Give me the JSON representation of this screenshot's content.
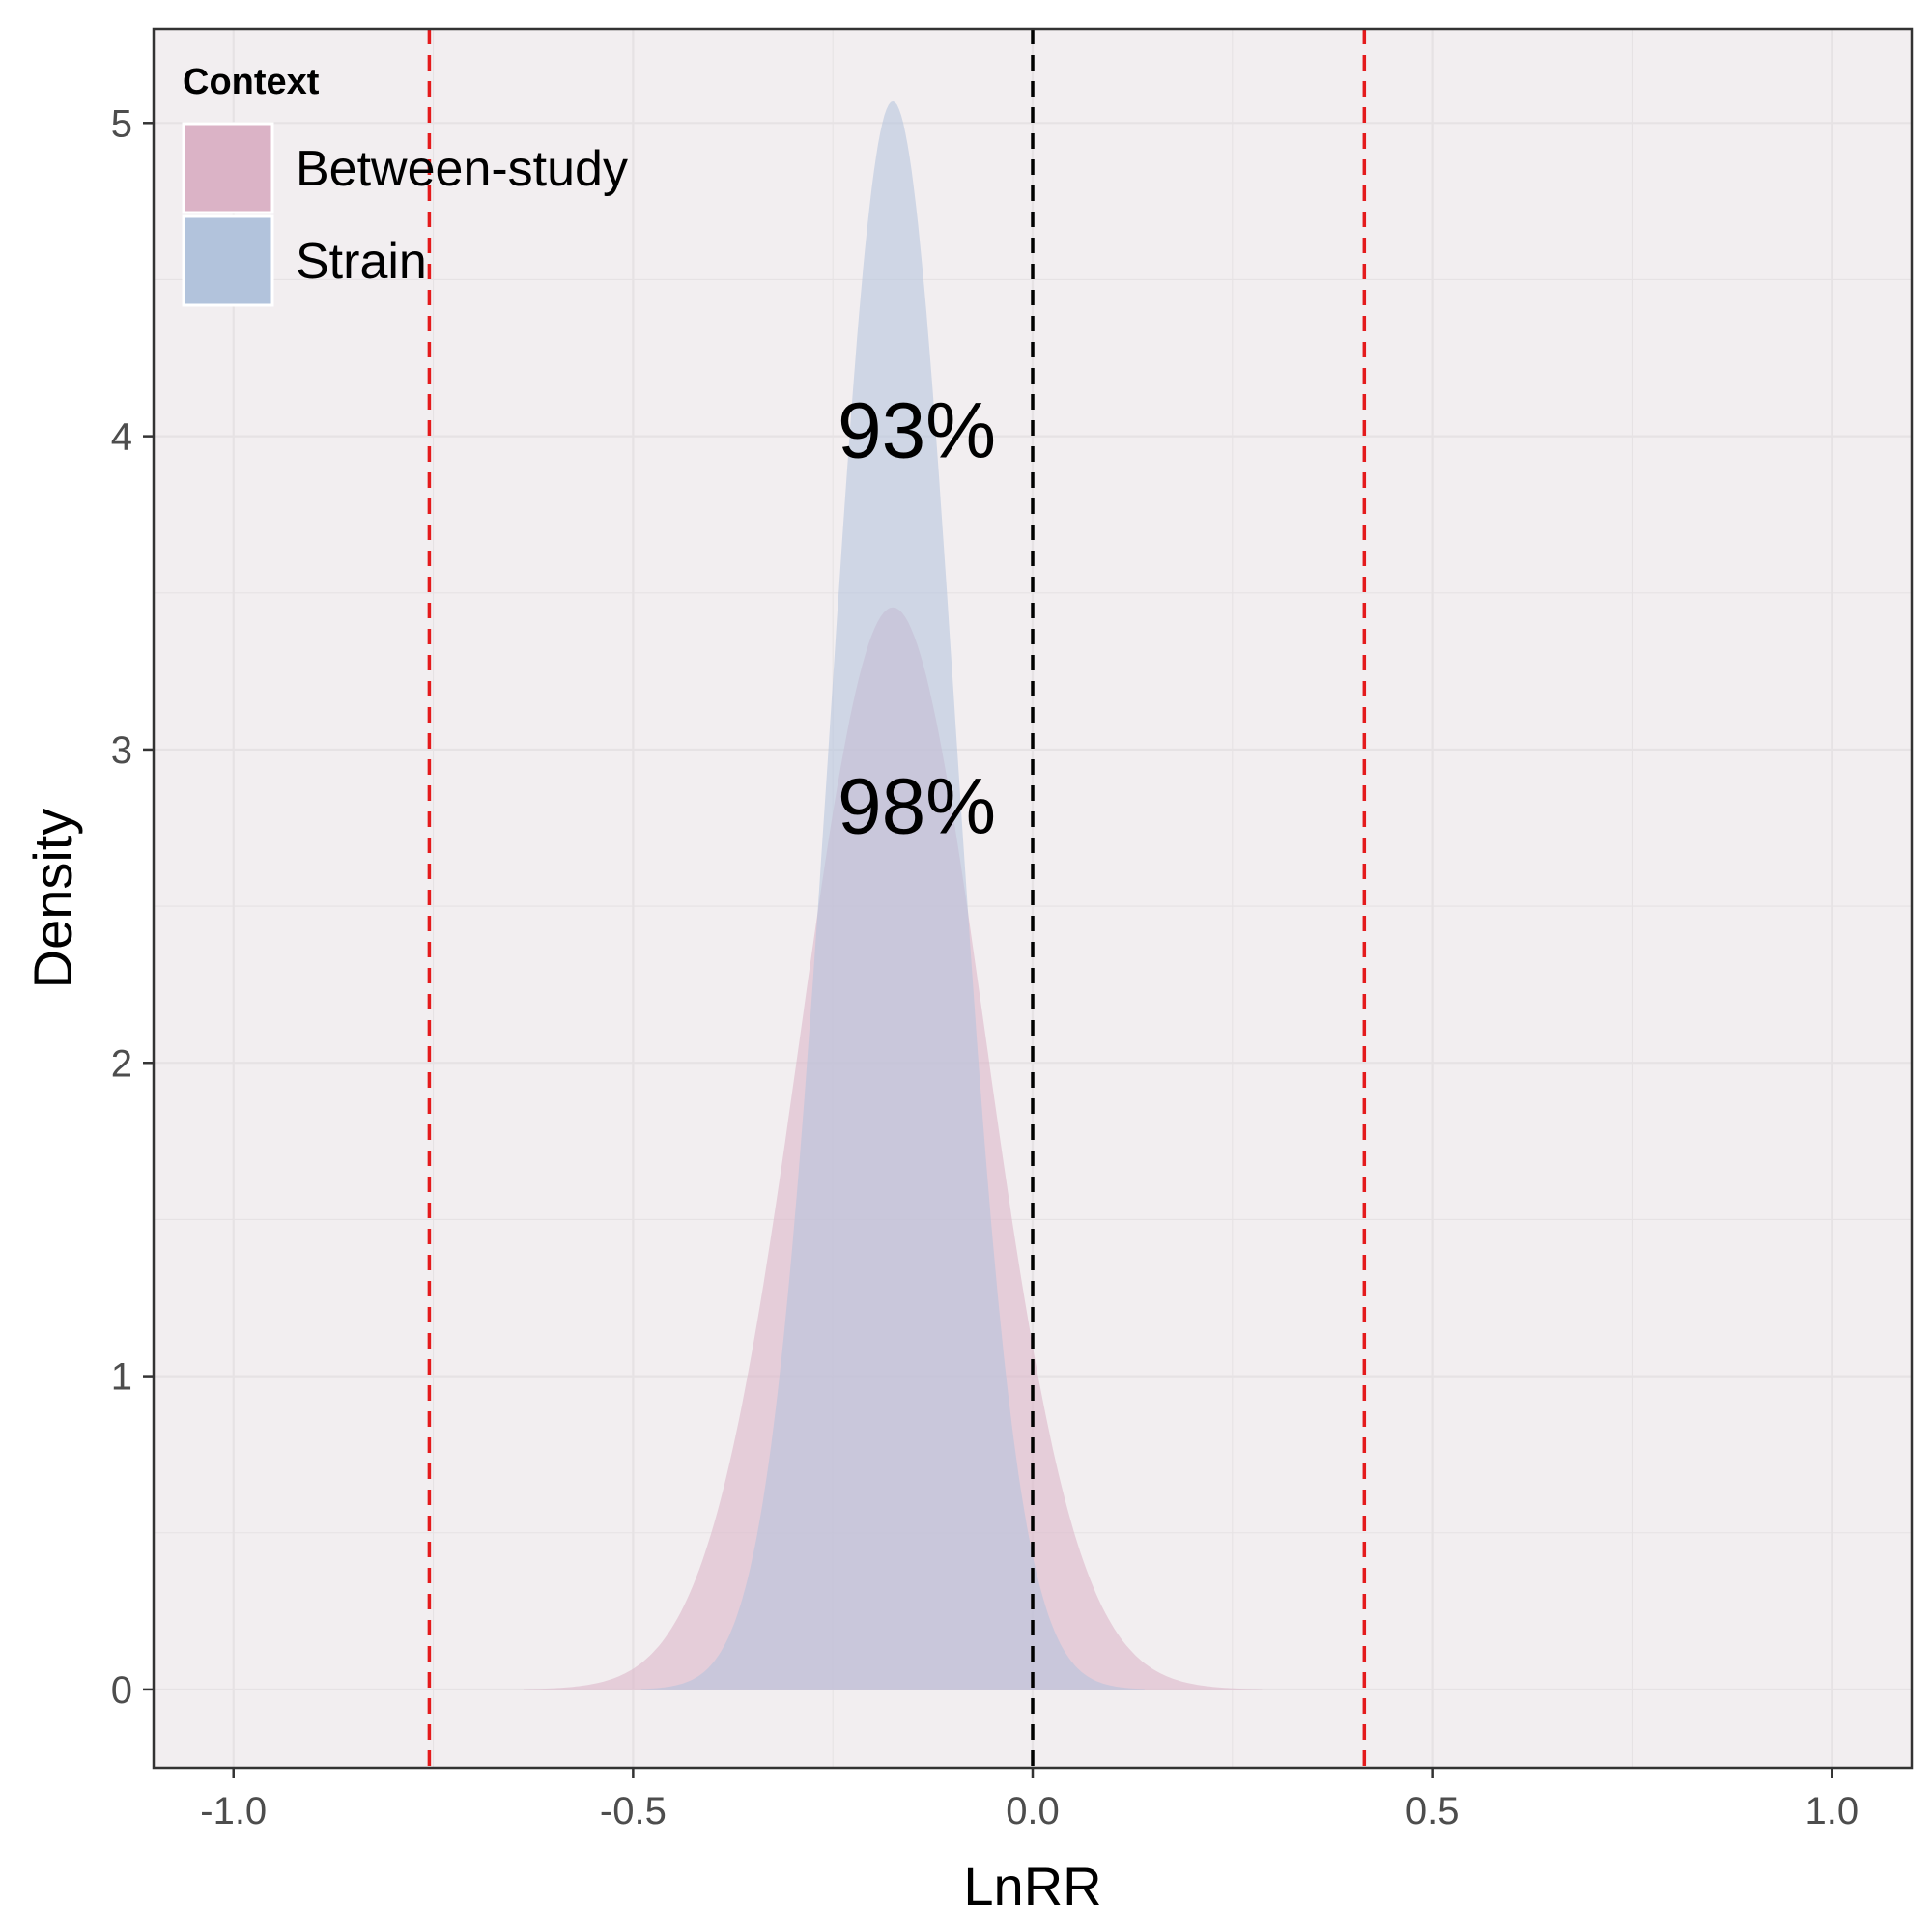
{
  "chart_data": {
    "type": "area",
    "subtype": "density",
    "xlabel": "LnRR",
    "ylabel": "Density",
    "xlim": [
      -1.1,
      1.1
    ],
    "ylim": [
      -0.25,
      5.3
    ],
    "x_ticks": [
      -1.0,
      -0.5,
      0.0,
      0.5,
      1.0
    ],
    "x_tick_labels": [
      "-1.0",
      "-0.5",
      "0.0",
      "0.5",
      "1.0"
    ],
    "y_ticks": [
      0,
      1,
      2,
      3,
      4,
      5
    ],
    "y_tick_labels": [
      "0",
      "1",
      "2",
      "3",
      "4",
      "5"
    ],
    "grid": true,
    "legend": {
      "title": "Context",
      "position": "top-left",
      "entries": [
        "Between-study",
        "Strain"
      ]
    },
    "series": [
      {
        "name": "Between-study",
        "distribution": "normal",
        "mean": -0.175,
        "sd": 0.1155,
        "peak_density": 3.45,
        "color": "#dbb3c6",
        "opacity": 0.55
      },
      {
        "name": "Strain",
        "distribution": "normal",
        "mean": -0.175,
        "sd": 0.0787,
        "peak_density": 5.07,
        "color": "#b2c3dc",
        "opacity": 0.55
      }
    ],
    "reference_lines": [
      {
        "x": 0.0,
        "color": "#000000",
        "style": "dashed"
      },
      {
        "x": -0.755,
        "color": "#e41a1c",
        "style": "dashed"
      },
      {
        "x": 0.415,
        "color": "#e41a1c",
        "style": "dashed"
      }
    ],
    "annotations": [
      {
        "text": "93%",
        "x": -0.145,
        "y": 4.0
      },
      {
        "text": "98%",
        "x": -0.145,
        "y": 2.8
      }
    ],
    "colors": {
      "panel_background": "#f2eef0",
      "grid": "#e6e2e4",
      "axis_text": "#4d4d4d"
    }
  }
}
